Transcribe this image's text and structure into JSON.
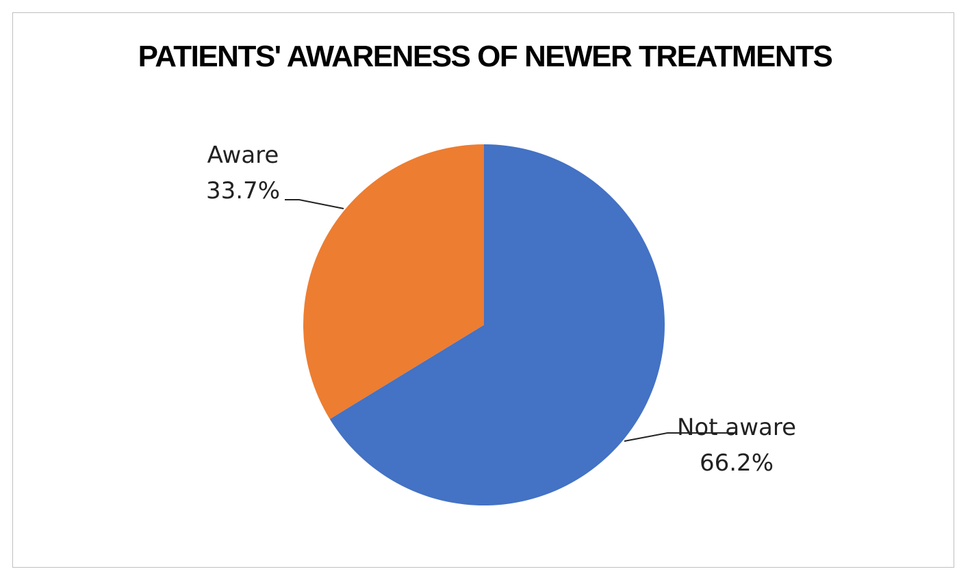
{
  "chart_data": {
    "type": "pie",
    "title": "PATIENTS' AWARENESS OF NEWER TREATMENTS",
    "series": [
      {
        "name": "",
        "slices": [
          {
            "label": "Not aware",
            "value": 66.2,
            "value_label": "66.2%",
            "color": "#4472C4"
          },
          {
            "label": "Aware",
            "value": 33.7,
            "value_label": "33.7%",
            "color": "#ED7D31"
          }
        ]
      }
    ],
    "start_angle_deg": 0,
    "direction": "clockwise",
    "legend": "none",
    "data_labels": "outside with leader lines"
  }
}
